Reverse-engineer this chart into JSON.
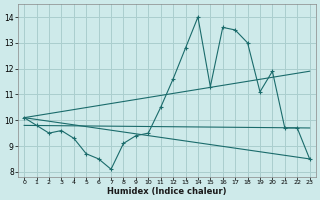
{
  "title": "",
  "xlabel": "Humidex (Indice chaleur)",
  "background_color": "#ceeaea",
  "grid_color": "#aacece",
  "line_color": "#1a6b6b",
  "xlim": [
    -0.5,
    23.5
  ],
  "ylim": [
    7.8,
    14.5
  ],
  "yticks": [
    8,
    9,
    10,
    11,
    12,
    13,
    14
  ],
  "xticks": [
    0,
    1,
    2,
    3,
    4,
    5,
    6,
    7,
    8,
    9,
    10,
    11,
    12,
    13,
    14,
    15,
    16,
    17,
    18,
    19,
    20,
    21,
    22,
    23
  ],
  "series": [
    {
      "x": [
        0,
        1,
        2,
        3,
        4,
        5,
        6,
        7,
        8,
        9,
        10,
        11,
        12,
        13,
        14,
        15,
        16,
        17,
        18,
        19,
        20,
        21,
        22,
        23
      ],
      "y": [
        10.1,
        9.8,
        9.5,
        9.6,
        9.3,
        8.7,
        8.5,
        8.1,
        9.1,
        9.4,
        9.5,
        10.5,
        11.6,
        12.8,
        14.0,
        11.3,
        13.6,
        13.5,
        13.0,
        11.1,
        11.9,
        9.7,
        9.7,
        8.5
      ],
      "markers": true
    },
    {
      "x": [
        0,
        23
      ],
      "y": [
        10.1,
        11.9
      ],
      "markers": false
    },
    {
      "x": [
        0,
        23
      ],
      "y": [
        10.1,
        8.5
      ],
      "markers": false
    },
    {
      "x": [
        0,
        23
      ],
      "y": [
        9.8,
        9.7
      ],
      "markers": false
    }
  ]
}
